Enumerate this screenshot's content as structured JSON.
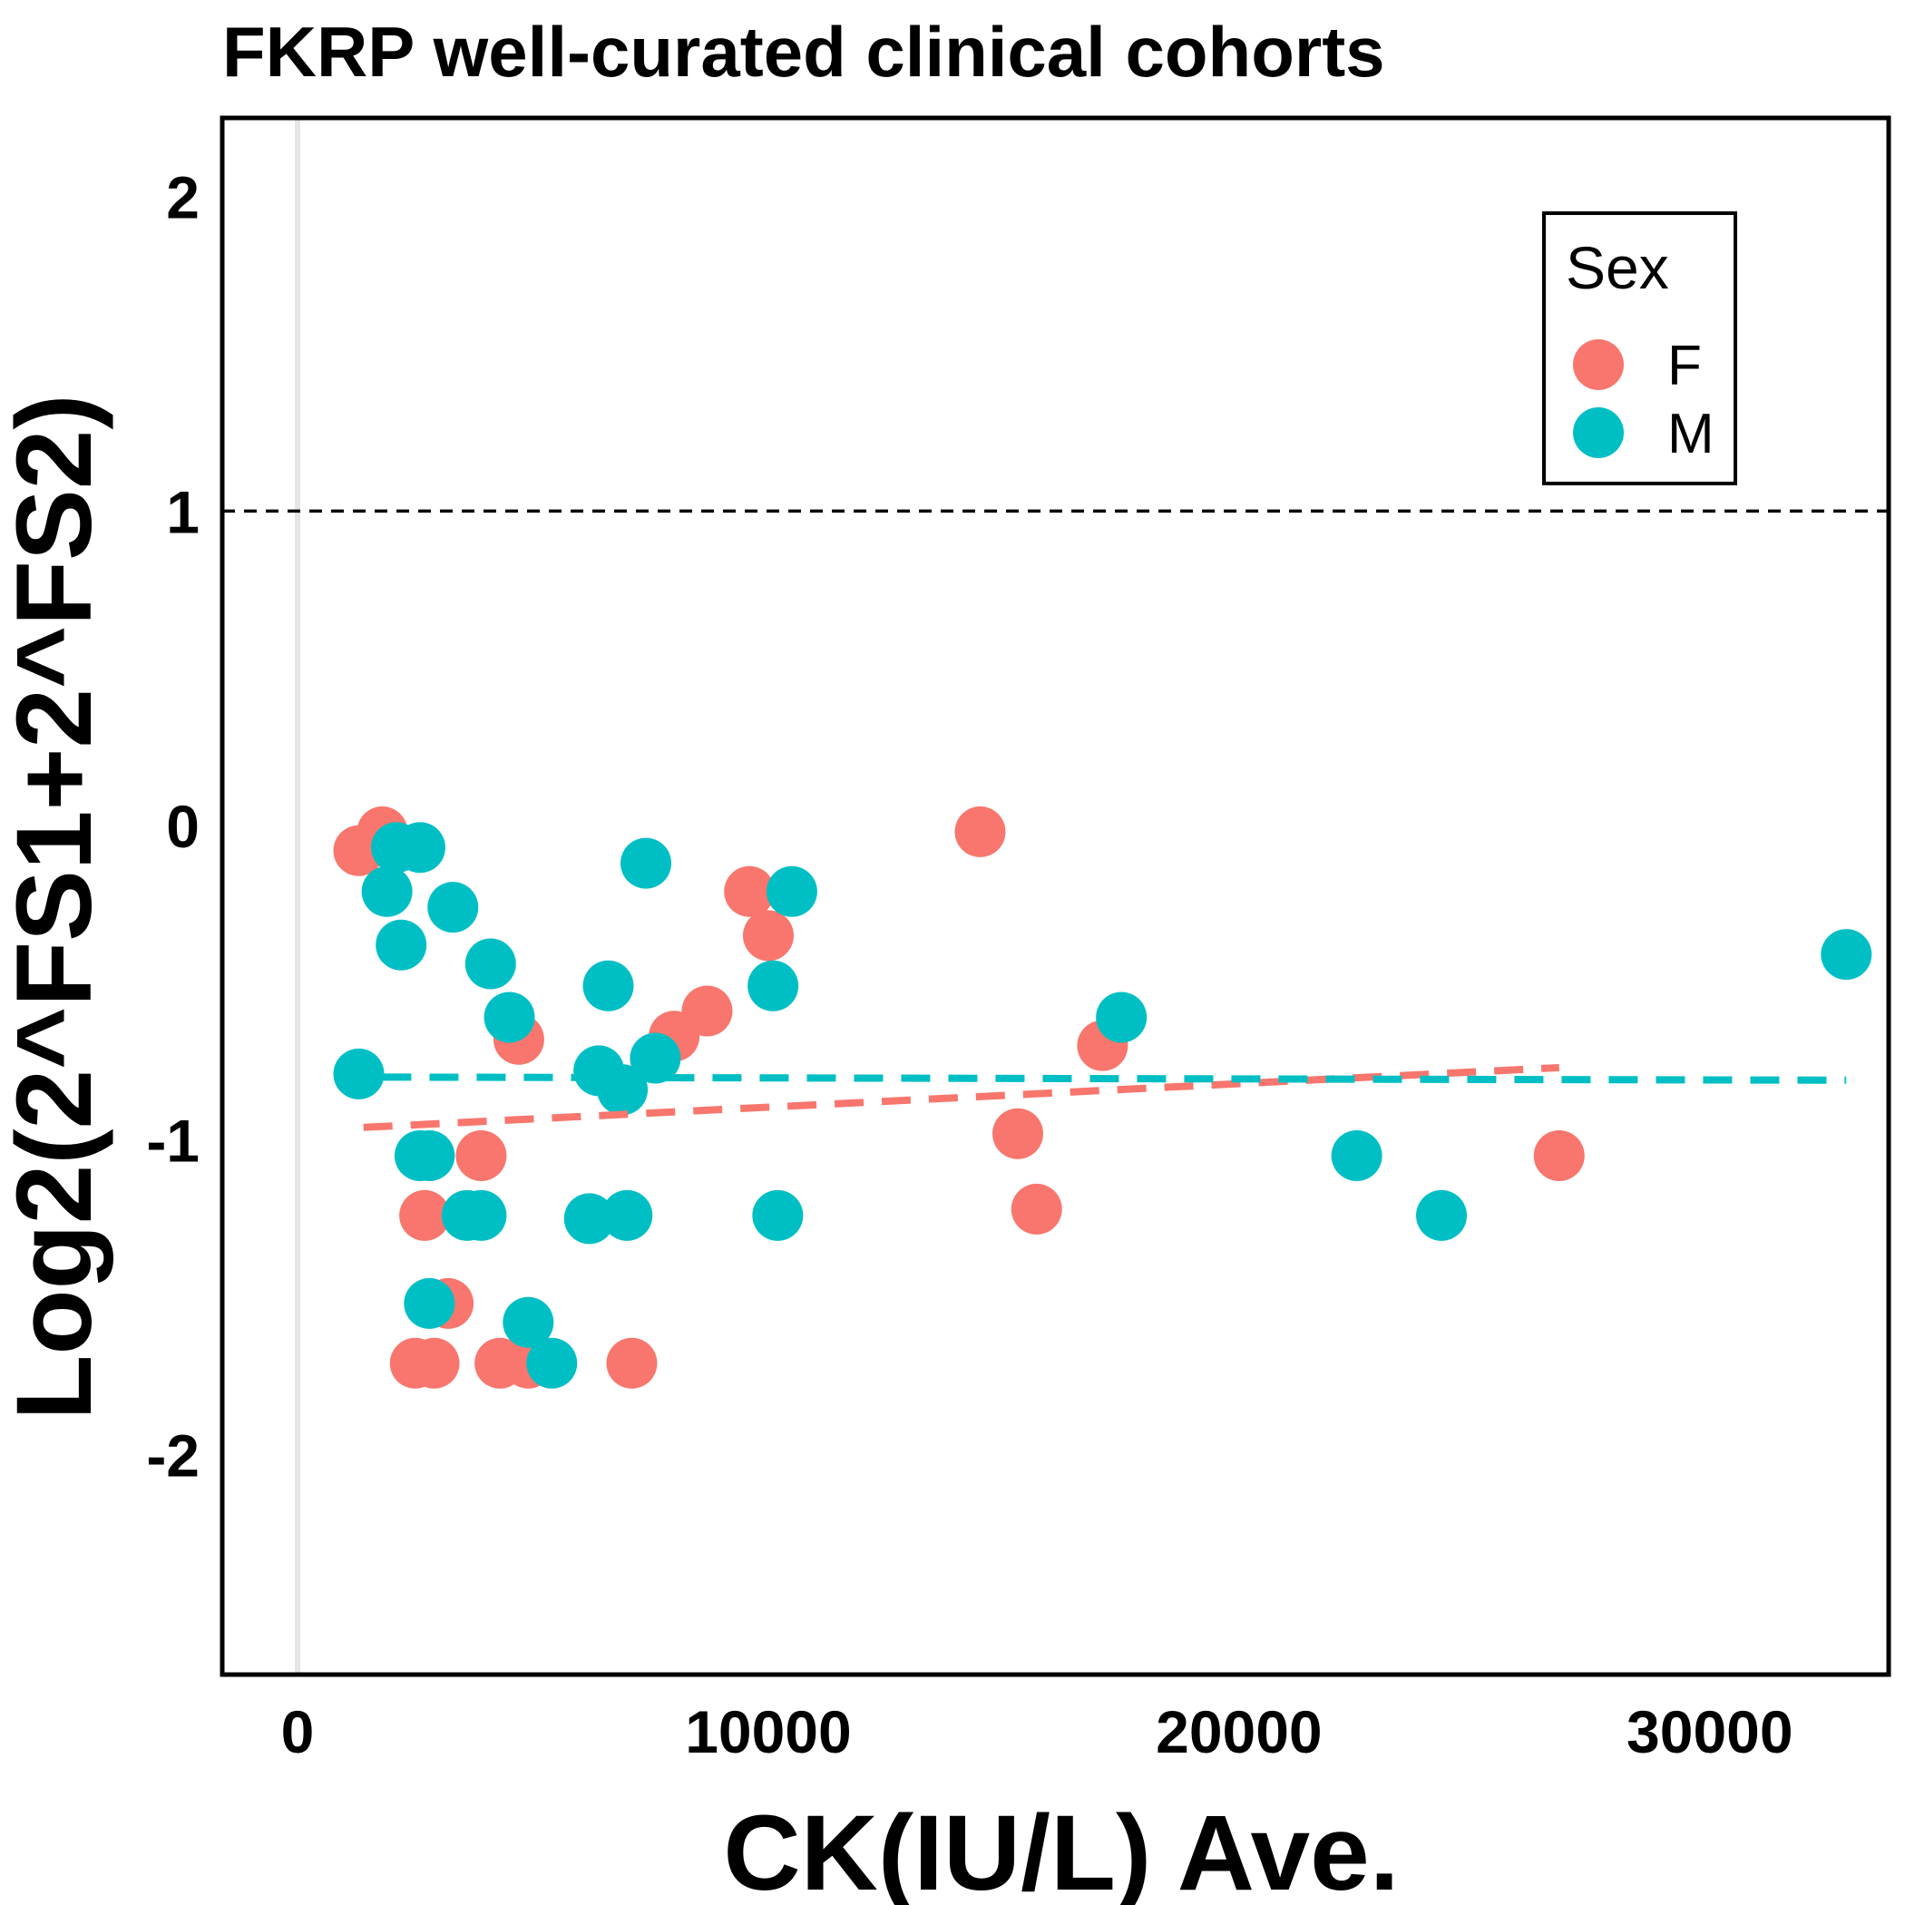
{
  "chart_data": {
    "type": "scatter",
    "title": "FKRP well-curated clinical cohorts",
    "xlabel": "CK(IU/L) Ave.",
    "ylabel": "Log2(2^FS1+2^FS2)",
    "xlim": [
      -1600,
      33800
    ],
    "ylim": [
      -2.7,
      2.25
    ],
    "x_ticks": [
      0,
      10000,
      20000,
      30000
    ],
    "y_ticks": [
      -2,
      -1,
      0,
      1,
      2
    ],
    "reference_line": {
      "y": 1,
      "style": "dashed"
    },
    "vertical_grid_line": {
      "x": 0
    },
    "legend": {
      "title": "Sex",
      "position": "top-right"
    },
    "series": [
      {
        "name": "F",
        "color": "#F8766D",
        "points": [
          [
            1300,
            -0.08
          ],
          [
            1800,
            -0.02
          ],
          [
            2700,
            -1.24
          ],
          [
            2500,
            -1.71
          ],
          [
            2900,
            -1.71
          ],
          [
            3200,
            -1.52
          ],
          [
            3900,
            -1.05
          ],
          [
            4300,
            -1.71
          ],
          [
            4700,
            -0.68
          ],
          [
            4900,
            -1.71
          ],
          [
            7100,
            -1.71
          ],
          [
            8000,
            -0.67
          ],
          [
            8700,
            -0.59
          ],
          [
            9600,
            -0.21
          ],
          [
            10000,
            -0.35
          ],
          [
            14500,
            -0.02
          ],
          [
            15300,
            -0.98
          ],
          [
            15700,
            -1.22
          ],
          [
            17100,
            -0.7
          ],
          [
            26800,
            -1.05
          ]
        ],
        "trend": {
          "x": [
            1400,
            26800
          ],
          "y": [
            -0.96,
            -0.77
          ]
        }
      },
      {
        "name": "M",
        "color": "#00BFC4",
        "points": [
          [
            1300,
            -0.79
          ],
          [
            1900,
            -0.21
          ],
          [
            2100,
            -0.07
          ],
          [
            2200,
            -0.38
          ],
          [
            2600,
            -0.07
          ],
          [
            2600,
            -1.05
          ],
          [
            2800,
            -1.05
          ],
          [
            2800,
            -1.52
          ],
          [
            3300,
            -0.26
          ],
          [
            3600,
            -1.24
          ],
          [
            3900,
            -1.24
          ],
          [
            4100,
            -0.44
          ],
          [
            4500,
            -0.61
          ],
          [
            4900,
            -1.58
          ],
          [
            5400,
            -1.71
          ],
          [
            6200,
            -1.25
          ],
          [
            6400,
            -0.78
          ],
          [
            6600,
            -0.51
          ],
          [
            6900,
            -0.84
          ],
          [
            7000,
            -1.24
          ],
          [
            7400,
            -0.12
          ],
          [
            7600,
            -0.74
          ],
          [
            10100,
            -0.51
          ],
          [
            10200,
            -1.24
          ],
          [
            10500,
            -0.21
          ],
          [
            17500,
            -0.61
          ],
          [
            22500,
            -1.05
          ],
          [
            24300,
            -1.24
          ],
          [
            32900,
            -0.41
          ]
        ],
        "trend": {
          "x": [
            1800,
            32900
          ],
          "y": [
            -0.8,
            -0.81
          ]
        }
      }
    ]
  }
}
